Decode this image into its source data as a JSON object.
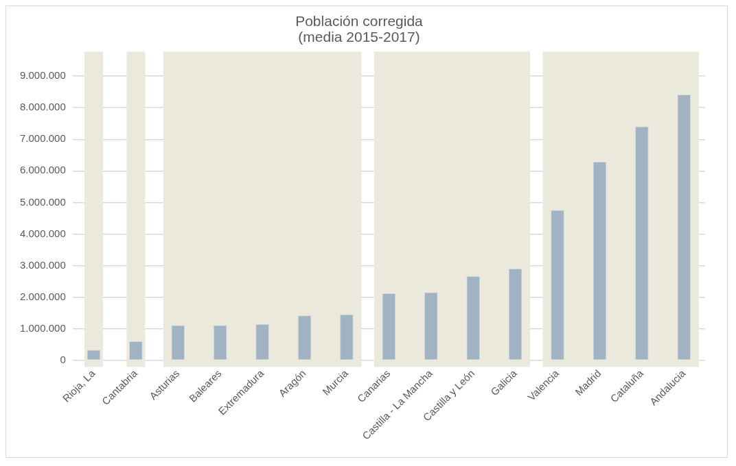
{
  "chart_data": {
    "type": "bar",
    "title": "Población corregida\n(media 2015-2017)",
    "categories": [
      "Rioja, La",
      "Cantabria",
      "Asturias",
      "Baleares",
      "Extremadura",
      "Aragón",
      "Murcia",
      "Canarias",
      "Castilla - La Mancha",
      "Castilla y León",
      "Galicia",
      "Valencia",
      "Madrid",
      "Cataluña",
      "Andalucia"
    ],
    "values": [
      330000,
      600000,
      1110000,
      1110000,
      1140000,
      1420000,
      1450000,
      2120000,
      2150000,
      2660000,
      2900000,
      4760000,
      6290000,
      7410000,
      8420000
    ],
    "color": "#a1b3c2",
    "ylim": [
      0,
      9000000
    ],
    "yticks": [
      {
        "value": 0,
        "label": "0"
      },
      {
        "value": 1000000,
        "label": "1.000.000"
      },
      {
        "value": 2000000,
        "label": "2.000.000"
      },
      {
        "value": 3000000,
        "label": "3.000.000"
      },
      {
        "value": 4000000,
        "label": "4.000.000"
      },
      {
        "value": 5000000,
        "label": "5.000.000"
      },
      {
        "value": 6000000,
        "label": "6.000.000"
      },
      {
        "value": 7000000,
        "label": "7.000.000"
      },
      {
        "value": 8000000,
        "label": "8.000.000"
      },
      {
        "value": 9000000,
        "label": "9.000.000"
      }
    ],
    "grid": "y",
    "legend": false,
    "bands": [
      {
        "axis": "x",
        "from": "Rioja, La",
        "to": "Rioja, La",
        "color": "#ebe8dc"
      },
      {
        "axis": "x",
        "from": "Cantabria",
        "to": "Cantabria",
        "color": "#ebe8dc"
      },
      {
        "axis": "x",
        "from": "Asturias",
        "to": "Murcia",
        "color": "#ebe8dc"
      },
      {
        "axis": "x",
        "from": "Canarias",
        "to": "Galicia",
        "color": "#ebe8dc"
      },
      {
        "axis": "x",
        "from": "Valencia",
        "to": "Andalucia",
        "color": "#ebe8dc"
      }
    ]
  }
}
